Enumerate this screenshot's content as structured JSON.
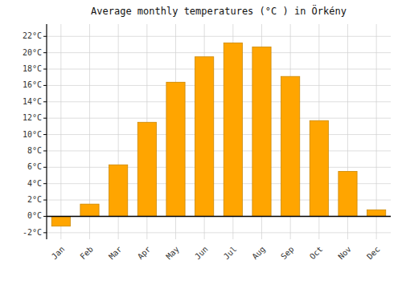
{
  "chart_data": {
    "type": "bar",
    "title": "Average monthly temperatures (°C ) in Örkény",
    "categories": [
      "Jan",
      "Feb",
      "Mar",
      "Apr",
      "May",
      "Jun",
      "Jul",
      "Aug",
      "Sep",
      "Oct",
      "Nov",
      "Dec"
    ],
    "values": [
      -1.2,
      1.5,
      6.3,
      11.5,
      16.4,
      19.5,
      21.2,
      20.7,
      17.1,
      11.7,
      5.5,
      0.8
    ],
    "color": "#FFA500",
    "ylim": [
      -2.8,
      23.5
    ],
    "yticks": [
      {
        "value": -2,
        "label": "-2°C"
      },
      {
        "value": 0,
        "label": "0°C"
      },
      {
        "value": 2,
        "label": "2°C"
      },
      {
        "value": 4,
        "label": "4°C"
      },
      {
        "value": 6,
        "label": "6°C"
      },
      {
        "value": 8,
        "label": "8°C"
      },
      {
        "value": 10,
        "label": "10°C"
      },
      {
        "value": 12,
        "label": "12°C"
      },
      {
        "value": 14,
        "label": "14°C"
      },
      {
        "value": 16,
        "label": "16°C"
      },
      {
        "value": 18,
        "label": "18°C"
      },
      {
        "value": 20,
        "label": "20°C"
      },
      {
        "value": 22,
        "label": "22°C"
      }
    ],
    "grid": true
  }
}
